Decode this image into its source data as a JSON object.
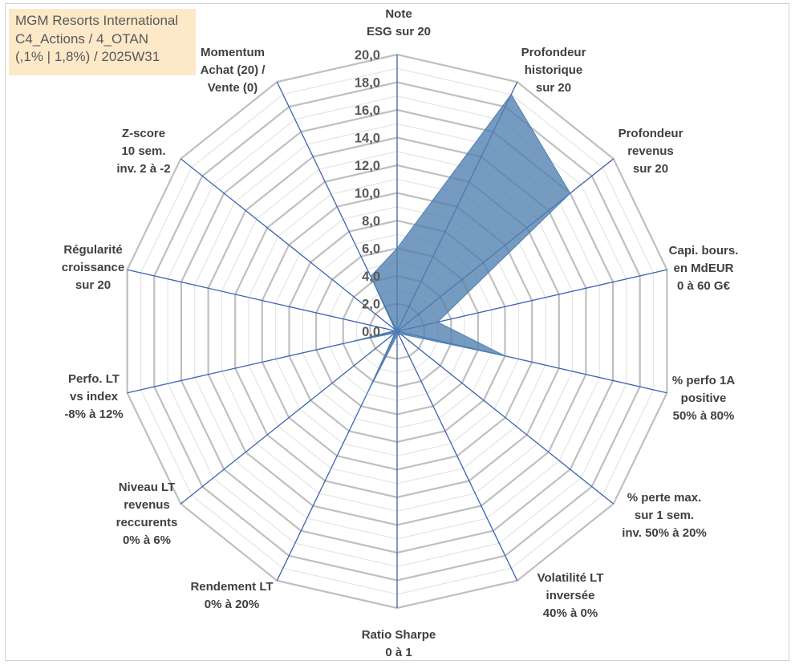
{
  "info_box": {
    "line1": "MGM Resorts International",
    "line2": "C4_Actions / 4_OTAN",
    "line3": "(,1% | 1,8%) / 2025W31"
  },
  "colors": {
    "fill": "#4f7fb0",
    "axis": "#3b64b0",
    "grid_major": "#bfbfbf",
    "grid_minor": "#e4e4e4",
    "box": "#fde9c8"
  },
  "chart_data": {
    "type": "radar",
    "rlim": [
      0,
      20
    ],
    "major_step": 2,
    "minor_step": 1,
    "tick_labels": [
      "0,0",
      "2,0",
      "4,0",
      "6,0",
      "8,0",
      "10,0",
      "12,0",
      "14,0",
      "16,0",
      "18,0",
      "20,0"
    ],
    "axes": [
      [
        "Note",
        "ESG sur 20"
      ],
      [
        "Profondeur",
        "historique",
        "sur 20"
      ],
      [
        "Profondeur",
        "revenus",
        "sur 20"
      ],
      [
        "Capi. bours.",
        "en MdEUR",
        "0 à 60 G€"
      ],
      [
        "% perfo 1A",
        "positive",
        "50% à 80%"
      ],
      [
        "% perte max.",
        "sur 1 sem.",
        "inv. 50% à 20%"
      ],
      [
        "Volatilité LT",
        "inversée",
        "40% à 0%"
      ],
      [
        "Ratio Sharpe",
        "0 à 1"
      ],
      [
        "Rendement LT",
        "0% à 20%"
      ],
      [
        "Niveau LT",
        "revenus",
        "reccurents",
        "0% à 6%"
      ],
      [
        "Perfo. LT",
        "vs index",
        "-8% à 12%"
      ],
      [
        "Régularité",
        "croissance",
        "sur 20"
      ],
      [
        "Z-score",
        "10 sem.",
        "inv. 2 à -2"
      ],
      [
        "Momentum",
        "Achat (20) /",
        "Vente (0)"
      ]
    ],
    "values": [
      6,
      19,
      16,
      3,
      8,
      0.3,
      0.3,
      0.3,
      5.2,
      0.2,
      3.5,
      0.2,
      0.2,
      4.4
    ]
  }
}
